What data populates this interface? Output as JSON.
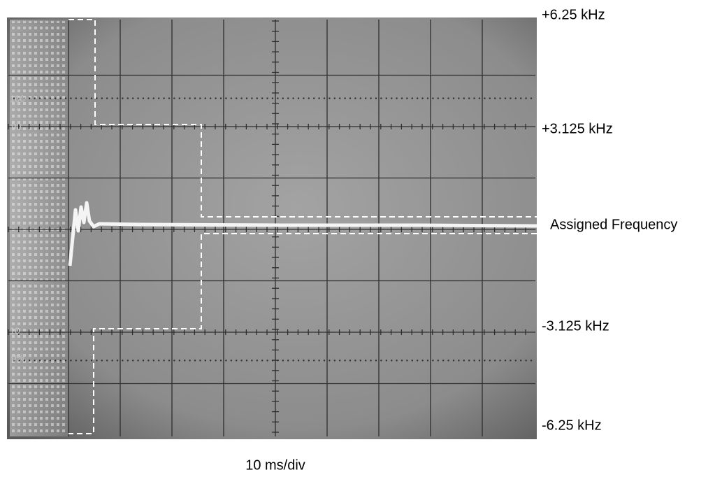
{
  "graticule_labels": [
    "100",
    "90",
    "10",
    "0%"
  ],
  "frequency_labels": [
    "+6.25 kHz",
    "+3.125 kHz",
    "Assigned Frequency",
    "-3.125 kHz",
    "-6.25 kHz"
  ],
  "time_label": "10 ms/div"
}
